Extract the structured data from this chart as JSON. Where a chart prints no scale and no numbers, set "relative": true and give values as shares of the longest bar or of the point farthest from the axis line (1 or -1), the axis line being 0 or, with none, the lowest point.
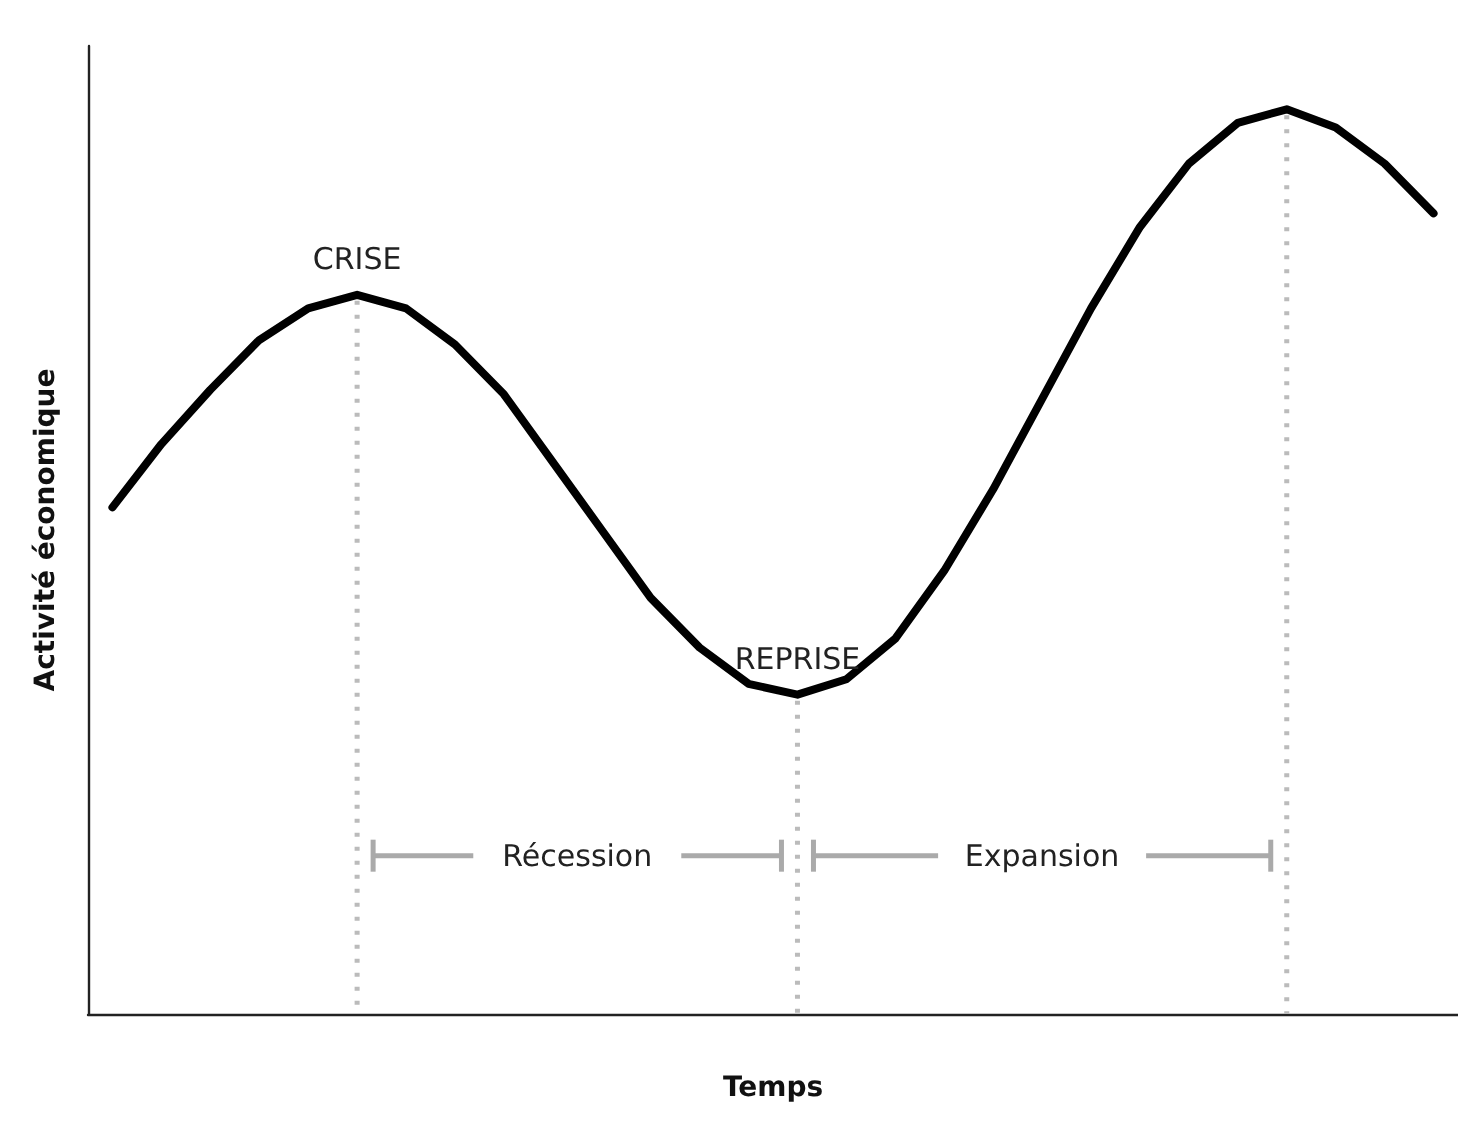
{
  "chart_data": {
    "type": "line",
    "relative": true,
    "xlabel": "Temps",
    "ylabel": "Activité économique",
    "categories": [
      null,
      null,
      null,
      null,
      null,
      null,
      null,
      null,
      null,
      null,
      null,
      null,
      null,
      null,
      null,
      null,
      null,
      null,
      null,
      null,
      null,
      null,
      null,
      null,
      null,
      null,
      null,
      null
    ],
    "grid": false,
    "marker": "none",
    "line_style": "solid",
    "series": [
      {
        "color": "#000000",
        "values": [
          0.56,
          0.63,
          0.69,
          0.745,
          0.78,
          0.795,
          0.78,
          0.74,
          0.685,
          0.61,
          0.535,
          0.46,
          0.405,
          0.365,
          0.353,
          0.37,
          0.415,
          0.49,
          0.58,
          0.68,
          0.78,
          0.87,
          0.94,
          0.985,
          1.0,
          0.98,
          0.94,
          0.885
        ]
      }
    ],
    "annotations": [
      "CRISE",
      "REPRISE",
      "Récession",
      "Expansion"
    ]
  }
}
